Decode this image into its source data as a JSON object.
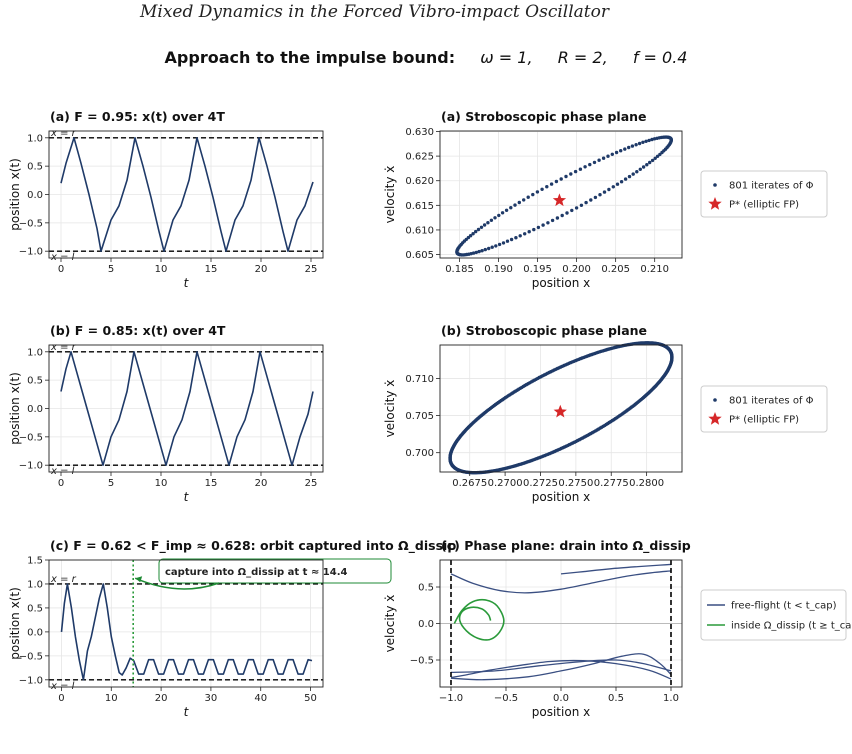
{
  "header": {
    "paper_title": "Mixed Dynamics in the Forced Vibro-impact Oscillator",
    "suptitle_lead": "Approach to the impulse bound:",
    "suptitle_omega": "ω = 1,",
    "suptitle_R": "R = 2,",
    "suptitle_f": "f = 0.4"
  },
  "colors": {
    "orbit": "#1f3a68",
    "fixed_point": "#d62728",
    "dissip": "#2a9a3a",
    "annotation_green": "#1e8a34",
    "wall": "#000000",
    "grid": "#e6e6e6"
  },
  "chart_data": [
    {
      "id": "a_time",
      "type": "line",
      "title_tag": "(a)",
      "title": "F = 0.95:   x(t) over 4T",
      "xlabel": "t",
      "ylabel": "position x(t)",
      "xlim": [
        -1.2,
        26.2
      ],
      "ylim": [
        -1.12,
        1.12
      ],
      "xticks": [
        0,
        5,
        10,
        15,
        20,
        25
      ],
      "yticks": [
        -1.0,
        -0.5,
        0.0,
        0.5,
        1.0
      ],
      "ytick_labels": [
        "−1.0",
        "−0.5",
        "0.0",
        "0.5",
        "1.0"
      ],
      "wall_labels": [
        "x = r",
        "x = l"
      ],
      "walls": [
        1.0,
        -1.0
      ],
      "grid": true,
      "series": [
        {
          "x": [
            0,
            0.5,
            1.3,
            2.0,
            2.8,
            3.6,
            4.0,
            5.0,
            5.8,
            6.6,
            7.4,
            8.2,
            9.0,
            9.8,
            10.3,
            11.2,
            12.0,
            12.8,
            13.6,
            14.4,
            15.2,
            16.0,
            16.5,
            17.4,
            18.2,
            19.0,
            19.8,
            20.6,
            21.4,
            22.2,
            22.7,
            23.6,
            24.4,
            25.2
          ],
          "y": [
            0.2,
            0.55,
            1.0,
            0.55,
            0.0,
            -0.6,
            -1.0,
            -0.45,
            -0.2,
            0.25,
            1.0,
            0.5,
            -0.05,
            -0.65,
            -1.0,
            -0.45,
            -0.2,
            0.25,
            1.0,
            0.5,
            -0.05,
            -0.65,
            -1.0,
            -0.45,
            -0.2,
            0.25,
            1.0,
            0.5,
            -0.05,
            -0.65,
            -1.0,
            -0.45,
            -0.2,
            0.22
          ]
        }
      ]
    },
    {
      "id": "a_phase",
      "type": "scatter",
      "title_tag": "(a)",
      "title": "Stroboscopic phase plane",
      "xlabel": "position x",
      "ylabel": "velocity ẋ",
      "xlim": [
        0.1825,
        0.2135
      ],
      "ylim": [
        0.6043,
        0.6301
      ],
      "xticks": [
        0.185,
        0.19,
        0.195,
        0.2,
        0.205,
        0.21
      ],
      "xtick_labels": [
        "0.185",
        "0.190",
        "0.195",
        "0.200",
        "0.205",
        "0.210"
      ],
      "yticks": [
        0.605,
        0.61,
        0.615,
        0.62,
        0.625,
        0.63
      ],
      "ytick_labels": [
        "0.605",
        "0.610",
        "0.615",
        "0.620",
        "0.625",
        "0.630"
      ],
      "grid": true,
      "ellipse": {
        "left_end": [
          0.1847,
          0.6053
        ],
        "right_end": [
          0.2121,
          0.6285
        ],
        "half_width": 0.0021,
        "n_points": 801
      },
      "fixed_point": {
        "x": 0.1978,
        "y": 0.616
      },
      "legend": {
        "position": "right",
        "items": [
          "801 iterates of Φ",
          "P*   (elliptic FP)"
        ]
      }
    },
    {
      "id": "b_time",
      "type": "line",
      "title_tag": "(b)",
      "title": "F = 0.85:   x(t) over 4T",
      "xlabel": "t",
      "ylabel": "position x(t)",
      "xlim": [
        -1.2,
        26.2
      ],
      "ylim": [
        -1.12,
        1.12
      ],
      "xticks": [
        0,
        5,
        10,
        15,
        20,
        25
      ],
      "yticks": [
        -1.0,
        -0.5,
        0.0,
        0.5,
        1.0
      ],
      "ytick_labels": [
        "−1.0",
        "−0.5",
        "0.0",
        "0.5",
        "1.0"
      ],
      "wall_labels": [
        "x = r",
        "x = l"
      ],
      "walls": [
        1.0,
        -1.0
      ],
      "grid": true,
      "series": [
        {
          "x": [
            0,
            0.5,
            1.0,
            1.8,
            2.6,
            3.4,
            4.2,
            5.0,
            5.8,
            6.6,
            7.3,
            8.1,
            8.9,
            9.7,
            10.5,
            11.3,
            12.1,
            12.9,
            13.6,
            14.4,
            15.2,
            16.0,
            16.8,
            17.6,
            18.4,
            19.2,
            19.9,
            20.7,
            21.5,
            22.3,
            23.1,
            23.9,
            24.7,
            25.2
          ],
          "y": [
            0.3,
            0.7,
            1.0,
            0.5,
            0.0,
            -0.5,
            -1.0,
            -0.5,
            -0.2,
            0.3,
            1.0,
            0.5,
            0.0,
            -0.5,
            -1.0,
            -0.5,
            -0.2,
            0.3,
            1.0,
            0.5,
            0.0,
            -0.5,
            -1.0,
            -0.5,
            -0.2,
            0.3,
            1.0,
            0.5,
            0.0,
            -0.5,
            -1.0,
            -0.5,
            -0.1,
            0.3
          ]
        }
      ]
    },
    {
      "id": "b_phase",
      "type": "scatter",
      "title_tag": "(b)",
      "title": "Stroboscopic phase plane",
      "xlabel": "position x",
      "ylabel": "velocity ẋ",
      "xlim": [
        0.2654,
        0.2825
      ],
      "ylim": [
        0.6974,
        0.7145
      ],
      "xticks": [
        0.2675,
        0.27,
        0.2725,
        0.275,
        0.2775,
        0.28
      ],
      "xtick_labels": [
        "0.2675",
        "0.2700",
        "0.2725",
        "0.2750",
        "0.2775",
        "0.2800"
      ],
      "yticks": [
        0.7,
        0.705,
        0.71
      ],
      "ytick_labels": [
        "0.700",
        "0.705",
        "0.710"
      ],
      "grid": true,
      "ellipse": {
        "left_end": [
          0.2662,
          0.6985
        ],
        "right_end": [
          0.2817,
          0.7136
        ],
        "half_width": 0.0026,
        "n_points": 801
      },
      "fixed_point": {
        "x": 0.2739,
        "y": 0.7055
      },
      "legend": {
        "position": "right",
        "items": [
          "801 iterates of Φ",
          "P*   (elliptic FP)"
        ]
      }
    },
    {
      "id": "c_time",
      "type": "line",
      "title_tag": "(c)",
      "title": "F = 0.62 < F_imp ≈ 0.628:   orbit captured into Ω_dissip",
      "xlabel": "t",
      "ylabel": "position x(t)",
      "xlim": [
        -2.5,
        52.5
      ],
      "ylim": [
        -1.15,
        1.5
      ],
      "xticks": [
        0,
        10,
        20,
        30,
        40,
        50
      ],
      "yticks": [
        -1.0,
        -0.5,
        0.0,
        0.5,
        1.0,
        1.5
      ],
      "ytick_labels": [
        "−1.0",
        "−0.5",
        "0.0",
        "0.5",
        "1.0",
        "1.5"
      ],
      "wall_labels": [
        "x = r",
        "x = l"
      ],
      "walls": [
        1.0,
        -1.0
      ],
      "grid": true,
      "capture_time": 14.4,
      "annotation": "capture into Ω_dissip   at   t ≈ 14.4",
      "series": [
        {
          "x": [
            0,
            0.6,
            1.2,
            2.0,
            2.8,
            3.6,
            4.4,
            5.2,
            6.0,
            6.8,
            7.6,
            8.4,
            9.2,
            10.0,
            10.8,
            11.6,
            12.2,
            13.0,
            13.8,
            14.5,
            15.5,
            16.5,
            17.5,
            18.5,
            19.5,
            20.5,
            21.5,
            22.5,
            23.5,
            24.5,
            25.5,
            26.5,
            27.5,
            28.5,
            29.5,
            30.5,
            31.5,
            32.5,
            33.5,
            34.5,
            35.5,
            36.5,
            37.5,
            38.5,
            39.5,
            40.5,
            41.5,
            42.5,
            43.5,
            44.5,
            45.5,
            46.5,
            47.5,
            48.5,
            49.5,
            50.3
          ],
          "y": [
            0.0,
            0.6,
            1.0,
            0.5,
            -0.1,
            -0.6,
            -1.0,
            -0.4,
            -0.1,
            0.3,
            0.7,
            1.0,
            0.5,
            -0.1,
            -0.5,
            -0.85,
            -0.9,
            -0.75,
            -0.55,
            -0.6,
            -0.88,
            -0.88,
            -0.58,
            -0.58,
            -0.88,
            -0.88,
            -0.58,
            -0.58,
            -0.88,
            -0.88,
            -0.58,
            -0.58,
            -0.88,
            -0.88,
            -0.58,
            -0.58,
            -0.88,
            -0.88,
            -0.58,
            -0.58,
            -0.88,
            -0.88,
            -0.58,
            -0.58,
            -0.88,
            -0.88,
            -0.58,
            -0.58,
            -0.88,
            -0.88,
            -0.58,
            -0.58,
            -0.88,
            -0.88,
            -0.58,
            -0.6
          ]
        }
      ]
    },
    {
      "id": "c_phase",
      "type": "line",
      "title_tag": "(c)",
      "title": "Phase plane: drain into Ω_dissip",
      "xlabel": "position x",
      "ylabel": "velocity ẋ",
      "xlim": [
        -1.1,
        1.1
      ],
      "ylim": [
        -0.87,
        0.87
      ],
      "xticks": [
        -1.0,
        -0.5,
        0.0,
        0.5,
        1.0
      ],
      "xtick_labels": [
        "−1.0",
        "−0.5",
        "0.0",
        "0.5",
        "1.0"
      ],
      "yticks": [
        -0.5,
        0.0,
        0.5
      ],
      "ytick_labels": [
        "−0.5",
        "0.0",
        "0.5"
      ],
      "grid": true,
      "walls_x": [
        -1.0,
        1.0
      ],
      "free_flight": [
        {
          "x": [
            0.0,
            0.2,
            0.45,
            0.7,
            0.9,
            1.0
          ],
          "y": [
            0.68,
            0.71,
            0.75,
            0.78,
            0.8,
            0.81
          ]
        },
        {
          "x": [
            -1.0,
            -0.8,
            -0.55,
            -0.3,
            0.0,
            0.3,
            0.6,
            0.85,
            1.0
          ],
          "y": [
            0.68,
            0.55,
            0.45,
            0.42,
            0.47,
            0.56,
            0.65,
            0.7,
            0.72
          ]
        },
        {
          "x": [
            1.0,
            0.8,
            0.5,
            0.2,
            -0.1,
            -0.4,
            -0.65,
            -0.85,
            -1.0
          ],
          "y": [
            -0.76,
            -0.64,
            -0.55,
            -0.51,
            -0.52,
            -0.58,
            -0.64,
            -0.7,
            -0.74
          ]
        },
        {
          "x": [
            -1.0,
            -0.7,
            -0.3,
            0.0,
            0.3,
            0.55,
            0.75,
            0.9,
            1.0
          ],
          "y": [
            -0.75,
            -0.77,
            -0.73,
            -0.65,
            -0.55,
            -0.45,
            -0.42,
            -0.55,
            -0.7
          ]
        },
        {
          "x": [
            -1.0,
            -0.6,
            -0.2,
            0.2,
            0.5,
            0.75,
            1.0
          ],
          "y": [
            -0.67,
            -0.65,
            -0.58,
            -0.52,
            -0.5,
            -0.55,
            -0.65
          ]
        }
      ],
      "inside_dissip": {
        "x": [
          -0.97,
          -0.9,
          -0.8,
          -0.68,
          -0.58,
          -0.52,
          -0.56,
          -0.65,
          -0.76,
          -0.86,
          -0.92,
          -0.9,
          -0.82,
          -0.72,
          -0.66,
          -0.64
        ],
        "y": [
          0.0,
          0.18,
          0.3,
          0.32,
          0.24,
          0.05,
          -0.12,
          -0.22,
          -0.2,
          -0.1,
          0.04,
          0.16,
          0.22,
          0.2,
          0.12,
          0.04
        ]
      },
      "legend": {
        "position": "right",
        "items": [
          "free-flight  (t < t_cap)",
          "inside Ω_dissip  (t ≥ t_cap)"
        ]
      }
    }
  ]
}
